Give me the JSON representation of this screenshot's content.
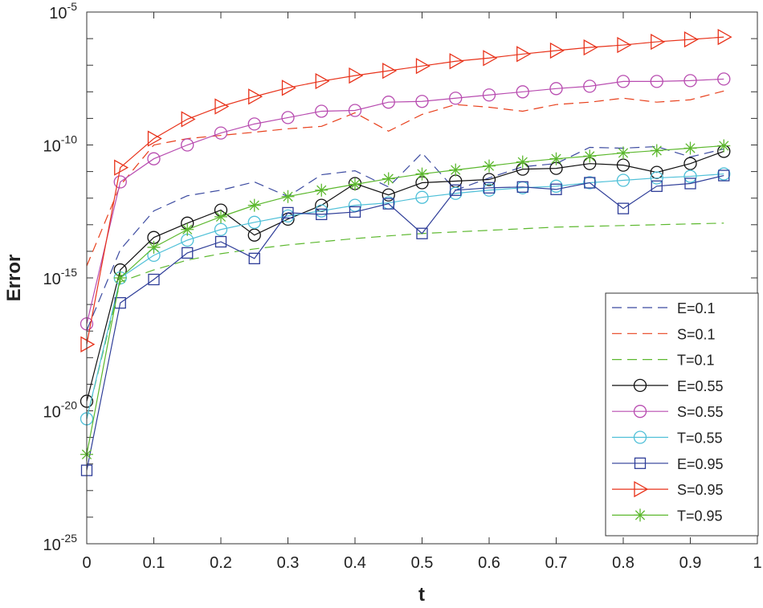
{
  "chart_data": {
    "type": "line",
    "title": "",
    "xlabel": "t",
    "ylabel": "Error",
    "xlim": [
      0,
      1
    ],
    "ylim": [
      1e-25,
      1e-05
    ],
    "yscale": "log",
    "value_encoding": "log10 of Error",
    "grid": false,
    "legend_position": "bottom-right",
    "x_ticks": [
      "0",
      "0.1",
      "0.2",
      "0.3",
      "0.4",
      "0.5",
      "0.6",
      "0.7",
      "0.8",
      "0.9",
      "1"
    ],
    "y_ticks": [
      {
        "base": "10",
        "exp": "-25"
      },
      {
        "base": "10",
        "exp": "-20"
      },
      {
        "base": "10",
        "exp": "-15"
      },
      {
        "base": "10",
        "exp": "-10"
      },
      {
        "base": "10",
        "exp": "-5"
      }
    ],
    "x": [
      0,
      0.05,
      0.1,
      0.15,
      0.2,
      0.25,
      0.3,
      0.35,
      0.4,
      0.45,
      0.5,
      0.55,
      0.6,
      0.65,
      0.7,
      0.75,
      0.8,
      0.85,
      0.9,
      0.95
    ],
    "series": [
      {
        "name": "E=0.1",
        "color": "#3b4aa0",
        "style": "dashed",
        "marker": "none",
        "log10_values": [
          -16.97,
          -13.94,
          -12.48,
          -11.91,
          -11.7,
          -11.39,
          -11.94,
          -11.12,
          -10.97,
          -11.58,
          -10.3,
          -11.7,
          -11.24,
          -10.82,
          -10.7,
          -10.09,
          -10.12,
          -10.06,
          -10.45,
          -10.15
        ]
      },
      {
        "name": "S=0.1",
        "color": "#e8401c",
        "style": "dashed",
        "marker": "none",
        "log10_values": [
          -14.55,
          -11.52,
          -10.0,
          -9.76,
          -9.64,
          -9.52,
          -9.39,
          -9.3,
          -8.79,
          -9.48,
          -8.85,
          -8.48,
          -8.58,
          -8.73,
          -8.48,
          -8.39,
          -8.24,
          -8.39,
          -8.3,
          -7.97
        ]
      },
      {
        "name": "T=0.1",
        "color": "#5cb82e",
        "style": "dashed",
        "marker": "none",
        "log10_values": [
          -20.3,
          -15.15,
          -14.7,
          -14.33,
          -14.09,
          -13.91,
          -13.76,
          -13.64,
          -13.52,
          -13.42,
          -13.33,
          -13.27,
          -13.21,
          -13.15,
          -13.09,
          -13.06,
          -13.03,
          -13.0,
          -12.97,
          -12.94
        ]
      },
      {
        "name": "E=0.55",
        "color": "#111111",
        "style": "solid",
        "marker": "circle",
        "log10_values": [
          -19.64,
          -14.7,
          -13.48,
          -12.94,
          -12.45,
          -13.39,
          -12.79,
          -12.27,
          -11.45,
          -11.88,
          -11.42,
          -11.36,
          -11.3,
          -10.91,
          -10.88,
          -10.7,
          -10.76,
          -11.03,
          -10.7,
          -10.24
        ]
      },
      {
        "name": "S=0.55",
        "color": "#b84cb0",
        "style": "solid",
        "marker": "circle",
        "log10_values": [
          -16.73,
          -11.39,
          -10.52,
          -10.0,
          -9.55,
          -9.21,
          -8.97,
          -8.73,
          -8.7,
          -8.39,
          -8.36,
          -8.24,
          -8.12,
          -8.0,
          -7.88,
          -7.79,
          -7.61,
          -7.61,
          -7.58,
          -7.52
        ]
      },
      {
        "name": "T=0.55",
        "color": "#4fc0d8",
        "style": "solid",
        "marker": "circle",
        "log10_values": [
          -20.3,
          -15.0,
          -14.15,
          -13.58,
          -13.18,
          -12.91,
          -12.67,
          -12.48,
          -12.27,
          -12.18,
          -11.97,
          -11.82,
          -11.7,
          -11.61,
          -11.55,
          -11.42,
          -11.33,
          -11.24,
          -11.18,
          -11.09
        ]
      },
      {
        "name": "E=0.95",
        "color": "#2e3d98",
        "style": "solid",
        "marker": "square",
        "log10_values": [
          -22.24,
          -15.94,
          -15.06,
          -14.06,
          -13.64,
          -14.27,
          -12.55,
          -12.61,
          -12.52,
          -12.21,
          -13.33,
          -11.7,
          -11.61,
          -11.58,
          -11.67,
          -11.42,
          -12.39,
          -11.55,
          -11.45,
          -11.15
        ]
      },
      {
        "name": "S=0.95",
        "color": "#e8321a",
        "style": "solid",
        "marker": "triangle-right",
        "log10_values": [
          -17.5,
          -10.85,
          -9.76,
          -9.03,
          -8.55,
          -8.18,
          -7.85,
          -7.6,
          -7.39,
          -7.21,
          -7.03,
          -6.85,
          -6.73,
          -6.58,
          -6.45,
          -6.33,
          -6.24,
          -6.12,
          -6.03,
          -5.94
        ]
      },
      {
        "name": "T=0.95",
        "color": "#5cb82e",
        "style": "solid",
        "marker": "asterisk",
        "log10_values": [
          -21.64,
          -15.0,
          -13.85,
          -13.18,
          -12.7,
          -12.27,
          -11.94,
          -11.7,
          -11.48,
          -11.27,
          -11.09,
          -10.94,
          -10.79,
          -10.64,
          -10.52,
          -10.42,
          -10.3,
          -10.21,
          -10.12,
          -10.03
        ]
      }
    ]
  }
}
